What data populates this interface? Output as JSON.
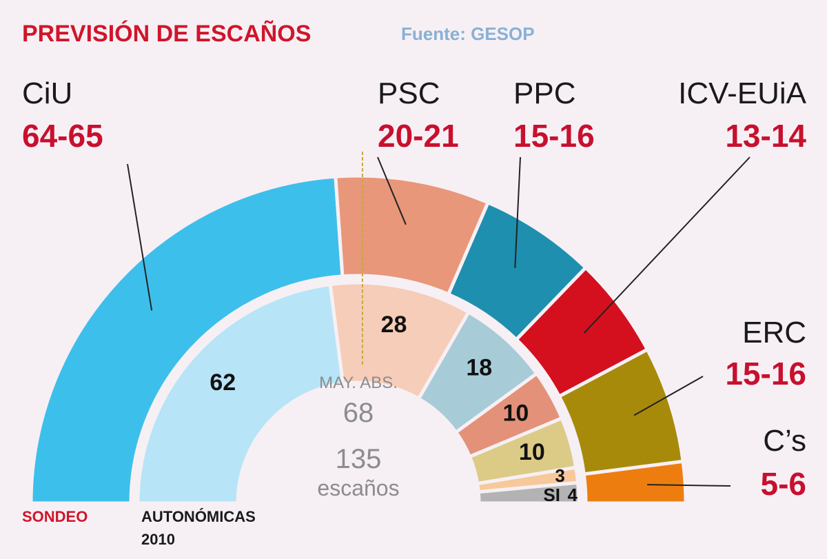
{
  "header": {
    "title": "PREVISIÓN DE ESCAÑOS",
    "source": "Fuente: GESOP"
  },
  "center": {
    "majority_label": "MAY. ABS.",
    "majority_value": "68",
    "total_value": "135",
    "total_unit": "escaños"
  },
  "ring_labels": {
    "outer": "SONDEO",
    "inner_line1": "AUTONÓMICAS",
    "inner_line2": "2010"
  },
  "colors": {
    "CiU": "#3dbfeb",
    "PSC": "#e8977a",
    "PPC": "#1e8fae",
    "ICV-EUiA": "#d4101f",
    "ERC": "#a88a0b",
    "Cs": "#ee7d0f",
    "CiU_2010": "#b7e4f6",
    "PSC_2010": "#f6cdb8",
    "PPC_2010": "#a8cbd8",
    "ICV_2010": "#e4917a",
    "ERC_2010": "#dccb86",
    "Cs_2010": "#f7c89a",
    "SI_2010": "#b3b3b3",
    "majority_line": "#c9a83a"
  },
  "chart_data": {
    "type": "semicircle-parliament",
    "title": "PREVISIÓN DE ESCAÑOS",
    "source": "Fuente: GESOP",
    "total_seats": 135,
    "majority": 68,
    "series": [
      {
        "name": "SONDEO",
        "parties": [
          {
            "party": "CiU",
            "range": "64-65",
            "seats": 64.5
          },
          {
            "party": "PSC",
            "range": "20-21",
            "seats": 20.5
          },
          {
            "party": "PPC",
            "range": "15-16",
            "seats": 15.5
          },
          {
            "party": "ICV-EUiA",
            "range": "13-14",
            "seats": 13.5
          },
          {
            "party": "ERC",
            "range": "15-16",
            "seats": 15.5
          },
          {
            "party": "C’s",
            "range": "5-6",
            "seats": 5.5
          }
        ]
      },
      {
        "name": "AUTONÓMICAS 2010",
        "parties": [
          {
            "party": "CiU",
            "seats": 62,
            "label": "62"
          },
          {
            "party": "PSC",
            "seats": 28,
            "label": "28"
          },
          {
            "party": "PPC",
            "seats": 18,
            "label": "18"
          },
          {
            "party": "ICV-EUiA",
            "seats": 10,
            "label": "10"
          },
          {
            "party": "ERC",
            "seats": 10,
            "label": "10"
          },
          {
            "party": "C’s",
            "seats": 3,
            "label": "3"
          },
          {
            "party": "SI",
            "seats": 4,
            "label": "4",
            "prefix": "SI"
          }
        ]
      }
    ]
  }
}
